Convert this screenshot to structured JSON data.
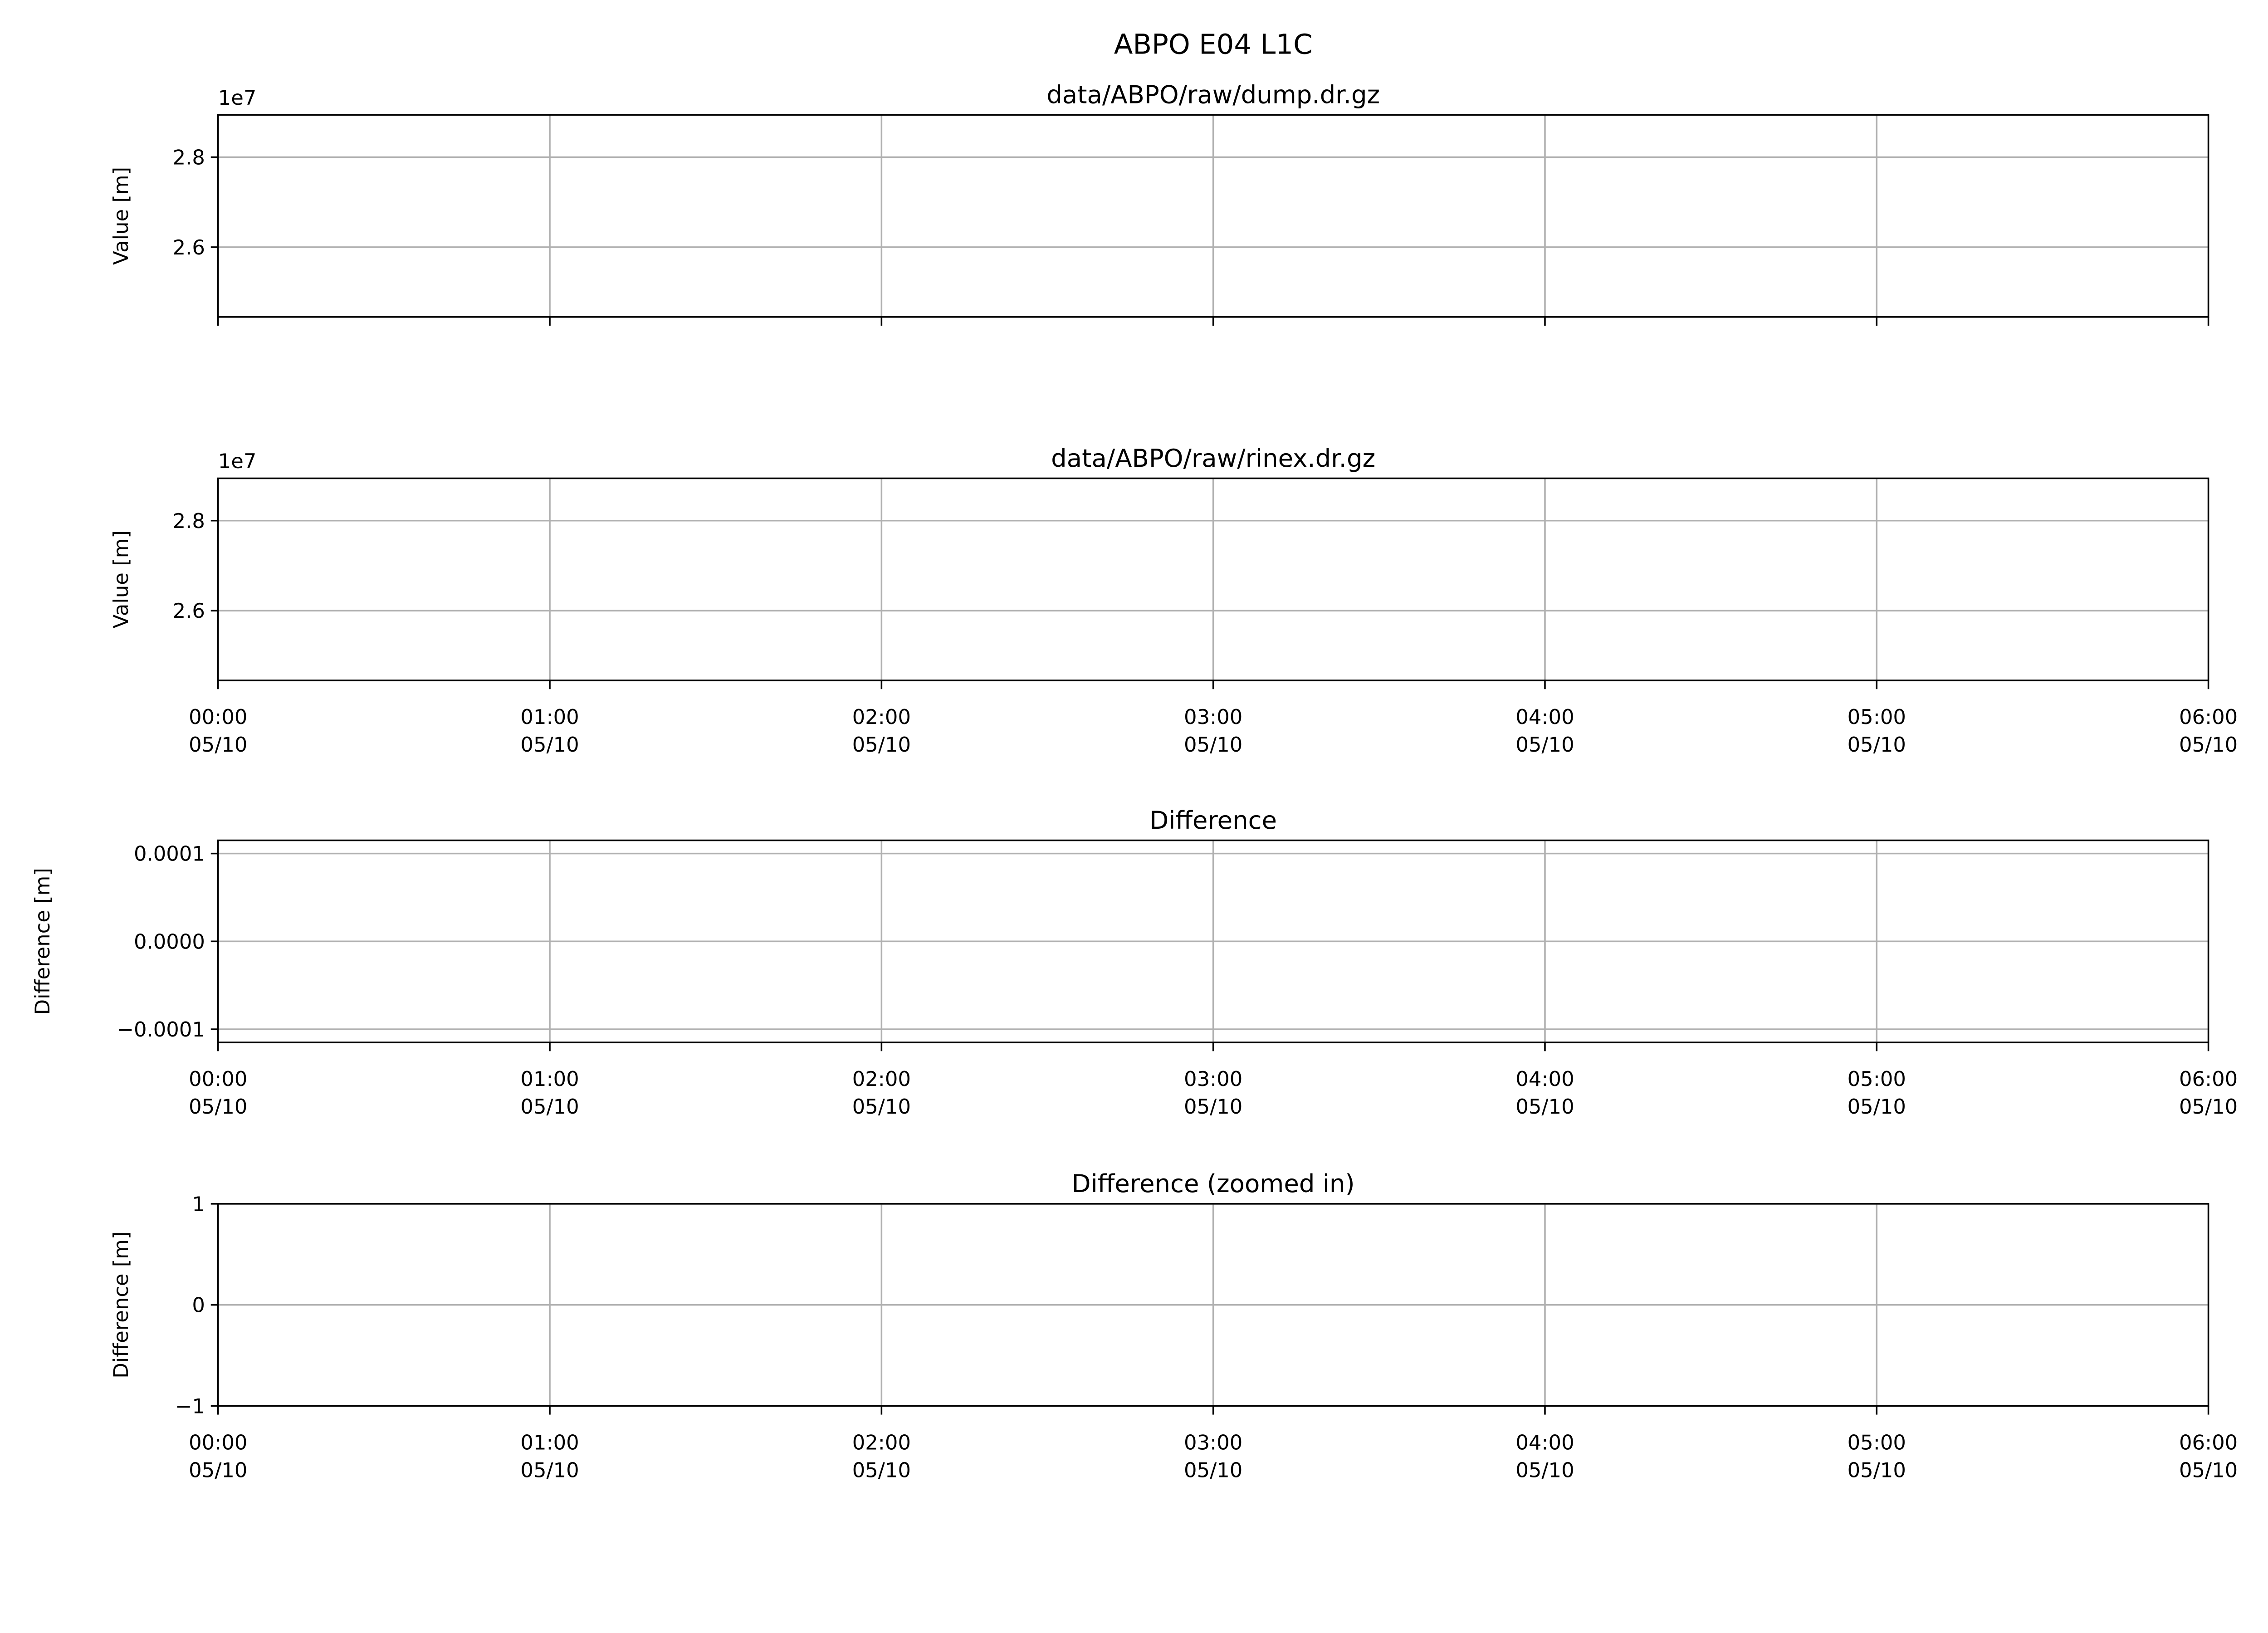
{
  "suptitle": "ABPO E04 L1C",
  "chart_data": [
    {
      "type": "line",
      "title": "data/ABPO/raw/dump.dr.gz",
      "ylabel": "Value [m]",
      "xlabel": "",
      "offset_label": "1e7",
      "ylim": [
        24450000,
        28940000
      ],
      "yticks": [
        26000000,
        28000000
      ],
      "ytick_labels": [
        "2.6",
        "2.8"
      ],
      "xlim": [
        "05/10 00:00",
        "05/10 06:00"
      ],
      "xticks": [
        0,
        1,
        2,
        3,
        4,
        5,
        6
      ],
      "xtick_labels": [],
      "grid": true,
      "series": []
    },
    {
      "type": "line",
      "title": "data/ABPO/raw/rinex.dr.gz",
      "ylabel": "Value [m]",
      "xlabel": "",
      "offset_label": "1e7",
      "ylim": [
        24450000,
        28940000
      ],
      "yticks": [
        26000000,
        28000000
      ],
      "ytick_labels": [
        "2.6",
        "2.8"
      ],
      "xlim": [
        "05/10 00:00",
        "05/10 06:00"
      ],
      "xticks": [
        0,
        1,
        2,
        3,
        4,
        5,
        6
      ],
      "xtick_labels": [
        [
          "00:00",
          "05/10"
        ],
        [
          "01:00",
          "05/10"
        ],
        [
          "02:00",
          "05/10"
        ],
        [
          "03:00",
          "05/10"
        ],
        [
          "04:00",
          "05/10"
        ],
        [
          "05:00",
          "05/10"
        ],
        [
          "06:00",
          "05/10"
        ]
      ],
      "grid": true,
      "series": []
    },
    {
      "type": "line",
      "title": "Difference",
      "ylabel": "Difference [m]",
      "xlabel": "",
      "ylim": [
        -0.000115,
        0.000115
      ],
      "yticks": [
        -0.0001,
        0,
        0.0001
      ],
      "ytick_labels": [
        "−0.0001",
        "0.0000",
        "0.0001"
      ],
      "xlim": [
        "05/10 00:00",
        "05/10 06:00"
      ],
      "xticks": [
        0,
        1,
        2,
        3,
        4,
        5,
        6
      ],
      "xtick_labels": [
        [
          "00:00",
          "05/10"
        ],
        [
          "01:00",
          "05/10"
        ],
        [
          "02:00",
          "05/10"
        ],
        [
          "03:00",
          "05/10"
        ],
        [
          "04:00",
          "05/10"
        ],
        [
          "05:00",
          "05/10"
        ],
        [
          "06:00",
          "05/10"
        ]
      ],
      "grid": true,
      "series": []
    },
    {
      "type": "line",
      "title": "Difference (zoomed in)",
      "ylabel": "Difference [m]",
      "xlabel": "",
      "ylim": [
        -1,
        1
      ],
      "yticks": [
        -1,
        0,
        1
      ],
      "ytick_labels": [
        "−1",
        "0",
        "1"
      ],
      "xlim": [
        "05/10 00:00",
        "05/10 06:00"
      ],
      "xticks": [
        0,
        1,
        2,
        3,
        4,
        5,
        6
      ],
      "xtick_labels": [
        [
          "00:00",
          "05/10"
        ],
        [
          "01:00",
          "05/10"
        ],
        [
          "02:00",
          "05/10"
        ],
        [
          "03:00",
          "05/10"
        ],
        [
          "04:00",
          "05/10"
        ],
        [
          "05:00",
          "05/10"
        ],
        [
          "06:00",
          "05/10"
        ]
      ],
      "grid": true,
      "series": []
    }
  ]
}
